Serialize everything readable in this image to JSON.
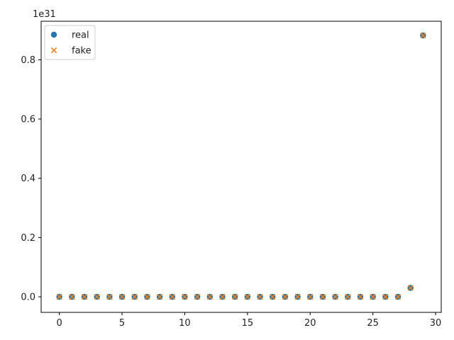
{
  "chart_data": {
    "type": "scatter",
    "title": "",
    "xlabel": "",
    "ylabel": "",
    "offset_label": "1e31",
    "xlim": [
      -1.45,
      30.45
    ],
    "ylim": [
      -0.0525,
      0.93
    ],
    "x_ticks": [
      0,
      5,
      10,
      15,
      20,
      25,
      30
    ],
    "y_ticks": [
      0.0,
      0.2,
      0.4,
      0.6,
      0.8
    ],
    "y_tick_labels": [
      "0.0",
      "0.2",
      "0.4",
      "0.6",
      "0.8"
    ],
    "grid": false,
    "legend": {
      "position": "top-left"
    },
    "series": [
      {
        "name": "real",
        "marker": "circle",
        "color": "#1f77b4",
        "x": [
          0,
          1,
          2,
          3,
          4,
          5,
          6,
          7,
          8,
          9,
          10,
          11,
          12,
          13,
          14,
          15,
          16,
          17,
          18,
          19,
          20,
          21,
          22,
          23,
          24,
          25,
          26,
          27,
          28,
          29
        ],
        "y": [
          0,
          0,
          0,
          0,
          0,
          0,
          0,
          0,
          0,
          0,
          0,
          0,
          0,
          0,
          0,
          0,
          0,
          0,
          0,
          0,
          0,
          0,
          0,
          0,
          0,
          0,
          0,
          0,
          0.03,
          0.882
        ]
      },
      {
        "name": "fake",
        "marker": "x",
        "color": "#ff7f0e",
        "x": [
          0,
          1,
          2,
          3,
          4,
          5,
          6,
          7,
          8,
          9,
          10,
          11,
          12,
          13,
          14,
          15,
          16,
          17,
          18,
          19,
          20,
          21,
          22,
          23,
          24,
          25,
          26,
          27,
          28,
          29
        ],
        "y": [
          0,
          0,
          0,
          0,
          0,
          0,
          0,
          0,
          0,
          0,
          0,
          0,
          0,
          0,
          0,
          0,
          0,
          0,
          0,
          0,
          0,
          0,
          0,
          0,
          0,
          0,
          0,
          0,
          0.03,
          0.882
        ]
      }
    ]
  }
}
